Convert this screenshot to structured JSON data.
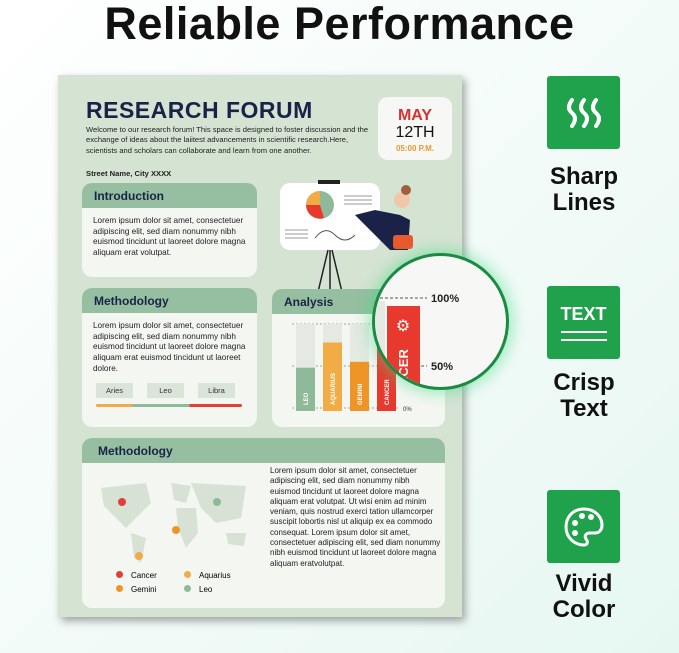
{
  "headline": "Reliable Performance",
  "poster": {
    "title": "RESEARCH FORUM",
    "description": "Welcome to our research forum! This space is designed to foster discussion and  the exchange of ideas about the laiitest advancements in scientific research.Here, scientists and scholars can collaborate and learn from one another.",
    "address": "Street Name, City XXXX",
    "date": {
      "month": "MAY",
      "day": "12TH",
      "time": "05:00 P.M."
    },
    "introduction": {
      "title": "Introduction",
      "body": "Lorem ipsum dolor sit amet, consectetuer adipiscing elit, sed diam nonummy nibh euismod tincidunt ut laoreet dolore magna aliquam erat volutpat."
    },
    "methodology": {
      "title": "Methodology",
      "body": "Lorem ipsum dolor sit amet, consectetuer adipiscing elit, sed diam nonummy nibh euismod tincidunt ut laoreet dolore magna aliquam erat euismod tincidunt ut laoreet dolore.",
      "tags": [
        "Aries",
        "Leo",
        "Libra"
      ]
    },
    "analysis": {
      "title": "Analysis"
    },
    "methodology2": {
      "title": "Methodology",
      "body": "Lorem ipsum dolor sit amet, consectetuer adipiscing elit, sed diam nonummy nibh euismod tincidunt ut laoreet dolore magna aliquam erat volutpat. Ut wisi enim ad minim veniam, quis nostrud exerci tation ullamcorper suscipit lobortis nisl ut aliquip ex ea commodo consequat. Lorem ipsum dolor sit amet, consectetuer adipiscing elit, sed diam nonummy nibh euismod tincidunt ut laoreet dolore magna aliquam eratvolutpat.",
      "legend": [
        {
          "label": "Cancer",
          "color": "#e0403a"
        },
        {
          "label": "Aquarius",
          "color": "#f2ac45"
        },
        {
          "label": "Gemini",
          "color": "#ef9528"
        },
        {
          "label": "Leo",
          "color": "#8fba9a"
        }
      ]
    }
  },
  "chart_data": {
    "type": "bar",
    "categories": [
      "LEO",
      "AQUARIUS",
      "GEMINI",
      "CANCER"
    ],
    "values": [
      48,
      78,
      55,
      95
    ],
    "colors": [
      "#8fba9a",
      "#f2ac45",
      "#ef9528",
      "#e8392f"
    ],
    "ticks": [
      "0%",
      "50%",
      "100%"
    ],
    "ylim": [
      0,
      100
    ]
  },
  "features": [
    {
      "icon": "waves-icon",
      "label1": "Sharp",
      "label2": "Lines"
    },
    {
      "icon": "text-icon",
      "label1": "Crisp",
      "label2": "Text",
      "icon_text": "TEXT"
    },
    {
      "icon": "palette-icon",
      "label1": "Vivid",
      "label2": "Color"
    }
  ],
  "colors": {
    "accent": "#20a14b",
    "header": "#95bfa0",
    "navy": "#1a2347"
  }
}
